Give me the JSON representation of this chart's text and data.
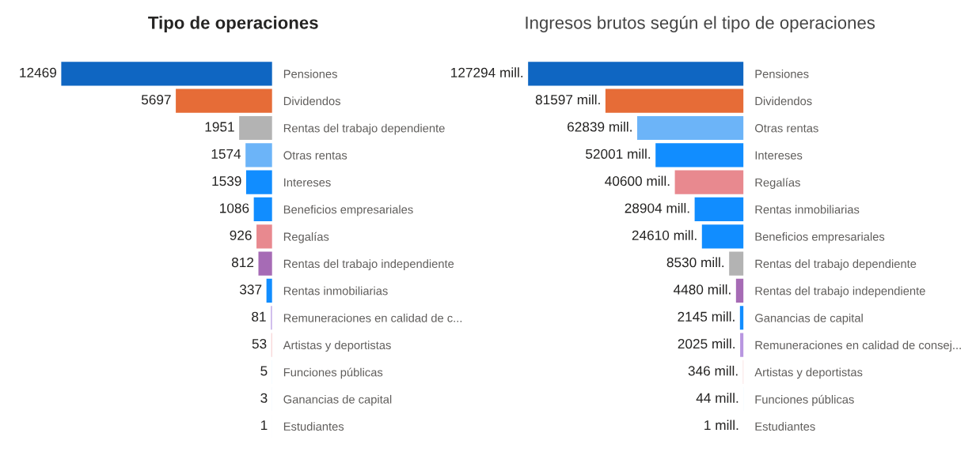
{
  "chart_data": [
    {
      "type": "bar",
      "orientation": "horizontal",
      "title": "Tipo de operaciones",
      "tick_labels": "y",
      "grid": false,
      "legend": false,
      "data_labels": true,
      "categories": [
        "Pensiones",
        "Dividendos",
        "Rentas del trabajo dependiente",
        "Otras rentas",
        "Intereses",
        "Beneficios empresariales",
        "Regalías",
        "Rentas del trabajo independiente",
        "Rentas inmobiliarias",
        "Remuneraciones en calidad de c...",
        "Artistas y deportistas",
        "Funciones públicas",
        "Ganancias de capital",
        "Estudiantes"
      ],
      "values": [
        12469,
        5697,
        1951,
        1574,
        1539,
        1086,
        926,
        812,
        337,
        81,
        53,
        5,
        3,
        1
      ],
      "colors": [
        "#0f66c2",
        "#e66c37",
        "#b3b3b3",
        "#6cb4f8",
        "#118dff",
        "#118dff",
        "#e8898f",
        "#a66bb5",
        "#118dff",
        "#c6b0e8",
        "#f5c9cb",
        "#9fcff7",
        "#7fbaf7",
        "#9fcff7"
      ]
    },
    {
      "type": "bar",
      "orientation": "horizontal",
      "title": "Ingresos brutos según el tipo de operaciones",
      "tick_labels": "y",
      "grid": false,
      "legend": false,
      "categories": [
        "Pensiones",
        "Dividendos",
        "Otras rentas",
        "Intereses",
        "Regalías",
        "Rentas inmobiliarias",
        "Beneficios empresariales",
        "Rentas del trabajo dependiente",
        "Rentas del trabajo independiente",
        "Ganancias de capital",
        "Remuneraciones en calidad de consej...",
        "Artistas y deportistas",
        "Funciones públicas",
        "Estudiantes"
      ],
      "values": [
        127294,
        81597,
        62839,
        52001,
        40600,
        28904,
        24610,
        8530,
        4480,
        2145,
        2025,
        346,
        44,
        1
      ],
      "value_labels": [
        "127294 mill.",
        "81597 mill.",
        "62839 mill.",
        "52001 mill.",
        "40600 mill.",
        "28904 mill.",
        "24610 mill.",
        "8530 mill.",
        "4480 mill.",
        "2145 mill.",
        "2025 mill.",
        "346 mill.",
        "44 mill.",
        "1 mill."
      ],
      "colors": [
        "#0f66c2",
        "#e66c37",
        "#6cb4f8",
        "#118dff",
        "#e8898f",
        "#118dff",
        "#118dff",
        "#b3b3b3",
        "#a66bb5",
        "#118dff",
        "#b896e0",
        "#f5c9cb",
        "#6cb4f8",
        "#6cb4f8"
      ]
    }
  ]
}
